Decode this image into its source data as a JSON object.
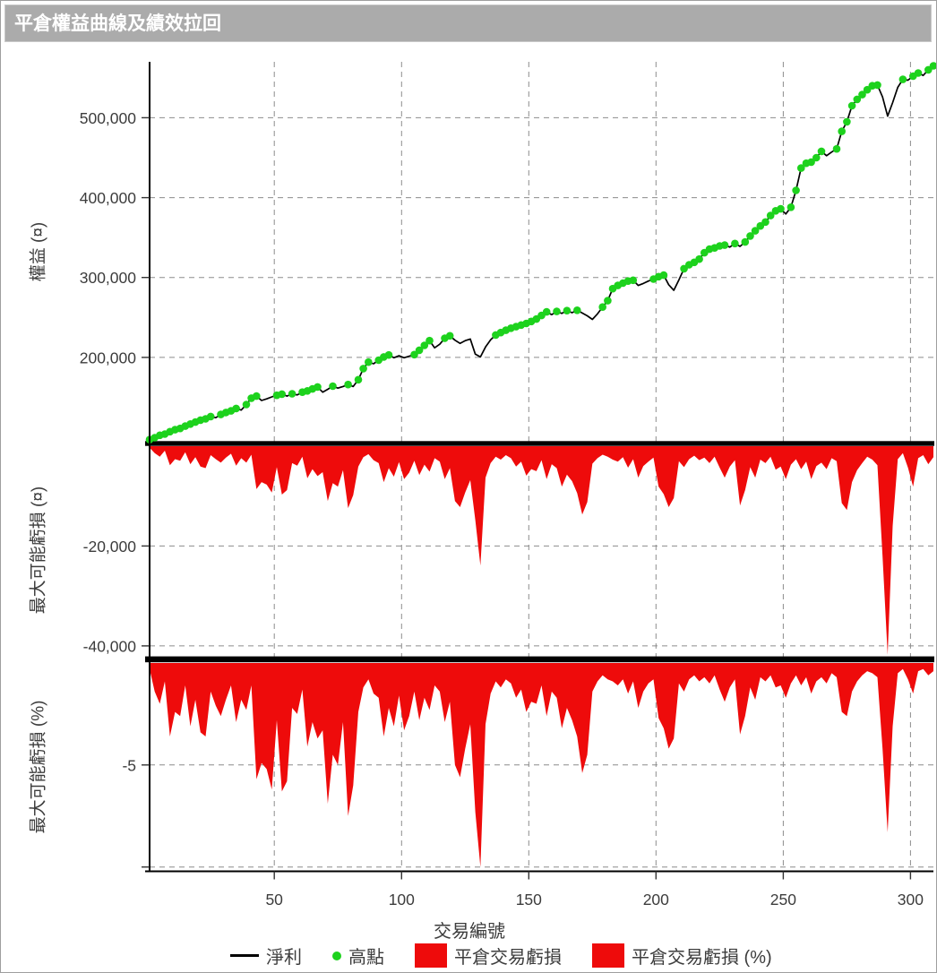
{
  "window": {
    "title": "平倉權益曲線及績效拉回"
  },
  "colors": {
    "titlebar_bg": "#ababab",
    "titlebar_text": "#ffffff",
    "net_profit_line": "#000000",
    "high_point_green": "#1dd21d",
    "loss_red": "#ee0b0b",
    "grid_gray": "#8c8c8c",
    "tick_text": "#3c3c3c"
  },
  "chart_data": {
    "type": "line",
    "layout": "3 stacked panels, shared x axis, grid on, legend bottom",
    "x_label": "交易編號",
    "x_start": 1,
    "x_step": 2,
    "x_count": 155,
    "x_range": [
      1,
      309
    ],
    "x_ticks": [
      50,
      100,
      150,
      200,
      250,
      300
    ],
    "legend": {
      "items": [
        {
          "label": "淨利",
          "swatch": "line",
          "color": "#000000"
        },
        {
          "label": "高點",
          "swatch": "dot",
          "color": "#1dd21d"
        },
        {
          "label": "平倉交易虧損",
          "swatch": "box",
          "color": "#ee0b0b"
        },
        {
          "label": "平倉交易虧損 (%)",
          "swatch": "box",
          "color": "#ee0b0b"
        }
      ]
    },
    "panels": [
      {
        "y_title": "權益 (¤)",
        "panel_type": "line",
        "ylim": [
          95000,
          570000
        ],
        "y_ticks": [
          {
            "v": 500000,
            "label": "500,000"
          },
          {
            "v": 400000,
            "label": "400,000"
          },
          {
            "v": 300000,
            "label": "300,000"
          },
          {
            "v": 200000,
            "label": "200,000"
          }
        ],
        "series": [
          {
            "name": "淨利",
            "style": "line",
            "color": "#000000",
            "values": [
              97000,
              99500,
              102500,
              104000,
              107000,
              109500,
              111000,
              114000,
              116500,
              119000,
              121500,
              123000,
              126000,
              124500,
              128500,
              131000,
              133000,
              136000,
              134000,
              141000,
              149000,
              151500,
              146000,
              148000,
              150500,
              152500,
              154000,
              151500,
              154500,
              153000,
              156500,
              158000,
              160500,
              163000,
              156500,
              160000,
              164000,
              161500,
              163500,
              166000,
              163500,
              172000,
              186000,
              194000,
              192000,
              196500,
              200500,
              203000,
              199500,
              202000,
              199500,
              201500,
              203500,
              209000,
              215000,
              221000,
              212000,
              216500,
              224000,
              227000,
              221500,
              217500,
              221000,
              223000,
              204000,
              200500,
              213000,
              222000,
              228000,
              231000,
              234000,
              236500,
              238500,
              240500,
              242500,
              245000,
              248000,
              252500,
              257000,
              253500,
              257500,
              255000,
              258500,
              256000,
              259000,
              255500,
              252000,
              247500,
              254500,
              263000,
              271000,
              286000,
              290000,
              293000,
              295500,
              296500,
              290000,
              292500,
              295500,
              298000,
              301000,
              303000,
              291000,
              284000,
              297000,
              311000,
              316000,
              319000,
              323000,
              331000,
              335500,
              337000,
              339500,
              340500,
              338000,
              342500,
              339000,
              344500,
              352000,
              358500,
              364500,
              369500,
              377500,
              383500,
              386000,
              379500,
              388000,
              409000,
              437000,
              443000,
              444500,
              450000,
              458000,
              452500,
              457000,
              461000,
              483000,
              495000,
              515000,
              523000,
              529000,
              535000,
              540000,
              541000,
              526000,
              502000,
              519000,
              538000,
              548000,
              547000,
              552000,
              556000,
              553000,
              560000,
              565000
            ]
          },
          {
            "name": "高點",
            "style": "dot",
            "color": "#1dd21d",
            "derived_from": "淨利",
            "rule": "marker at every new running high of 淨利"
          }
        ]
      },
      {
        "y_title": "最大可能虧損 (¤)",
        "panel_type": "area",
        "ylim": [
          -42000,
          0
        ],
        "y_ticks": [
          {
            "v": -20000,
            "label": "-20,000"
          },
          {
            "v": -40000,
            "label": "-40,000"
          }
        ],
        "series": [
          {
            "name": "平倉交易虧損",
            "style": "area",
            "color": "#ee0b0b",
            "values": [
              -300,
              -1400,
              -2100,
              -900,
              -3800,
              -2600,
              -2900,
              -1200,
              -3600,
              -2200,
              -4100,
              -4400,
              -1800,
              -2600,
              -3300,
              -2300,
              -1500,
              -3900,
              -2400,
              -3300,
              -1700,
              -8600,
              -7200,
              -7700,
              -9300,
              -4200,
              -9700,
              -8800,
              -3400,
              -3900,
              -2100,
              -6400,
              -4600,
              -6000,
              -5200,
              -11000,
              -7400,
              -8100,
              -4800,
              -12400,
              -9800,
              -4100,
              -2200,
              -1600,
              -2800,
              -3400,
              -7200,
              -4400,
              -6100,
              -3200,
              -6600,
              -5300,
              -2900,
              -5800,
              -3700,
              -5100,
              -2400,
              -3100,
              -6600,
              -4400,
              -11000,
              -12200,
              -9300,
              -6800,
              -14800,
              -23900,
              -6300,
              -3400,
              -2100,
              -2700,
              -1800,
              -2400,
              -4100,
              -3100,
              -5900,
              -4600,
              -5000,
              -2800,
              -6600,
              -3600,
              -4400,
              -8100,
              -5700,
              -7000,
              -9400,
              -13700,
              -11200,
              -3500,
              -2400,
              -1700,
              -2100,
              -2700,
              -3100,
              -2200,
              -4300,
              -2600,
              -6300,
              -4000,
              -3100,
              -2300,
              -8100,
              -9600,
              -12200,
              -10400,
              -3000,
              -4200,
              -2600,
              -1900,
              -2800,
              -2300,
              -3400,
              -2100,
              -4300,
              -6300,
              -4100,
              -2800,
              -11900,
              -8800,
              -4200,
              -6300,
              -2700,
              -3400,
              -2100,
              -4700,
              -4100,
              -6600,
              -3700,
              -2600,
              -4600,
              -3100,
              -6600,
              -4000,
              -3300,
              -4600,
              -2400,
              -3000,
              -11400,
              -12800,
              -7200,
              -4800,
              -3400,
              -2100,
              -2700,
              -3800,
              -22000,
              -41800,
              -16000,
              -2600,
              -1400,
              -4300,
              -8100,
              -2400,
              -1800,
              -3600,
              -2200
            ]
          }
        ]
      },
      {
        "y_title": "最大可能虧損 (%)",
        "panel_type": "area",
        "ylim": [
          -10.05,
          0
        ],
        "y_ticks": [
          {
            "v": -5,
            "label": "-5"
          },
          {
            "v": -10,
            "label": ""
          }
        ],
        "series": [
          {
            "name": "平倉交易虧損 (%)",
            "style": "area",
            "color": "#ee0b0b",
            "values": [
              -0.3,
              -1.4,
              -2.0,
              -0.9,
              -3.6,
              -2.4,
              -2.6,
              -1.1,
              -3.1,
              -1.8,
              -3.4,
              -3.6,
              -1.4,
              -2.1,
              -2.6,
              -1.8,
              -1.1,
              -2.9,
              -1.8,
              -2.3,
              -1.1,
              -5.7,
              -4.9,
              -5.2,
              -6.2,
              -2.8,
              -6.3,
              -5.8,
              -2.2,
              -2.5,
              -1.3,
              -4.1,
              -2.9,
              -3.7,
              -3.3,
              -6.9,
              -4.5,
              -5.0,
              -2.9,
              -7.5,
              -6.0,
              -2.4,
              -1.2,
              -0.8,
              -1.5,
              -1.7,
              -3.6,
              -2.2,
              -3.1,
              -1.6,
              -3.3,
              -2.6,
              -1.4,
              -2.8,
              -1.7,
              -2.3,
              -1.1,
              -1.4,
              -2.9,
              -1.9,
              -5.0,
              -5.6,
              -4.2,
              -3.0,
              -7.3,
              -10.0,
              -3.0,
              -1.5,
              -0.9,
              -1.2,
              -0.8,
              -1.0,
              -1.7,
              -1.3,
              -2.4,
              -1.9,
              -2.0,
              -1.1,
              -2.6,
              -1.4,
              -1.7,
              -3.2,
              -2.2,
              -2.8,
              -3.6,
              -5.4,
              -4.5,
              -1.4,
              -0.9,
              -0.6,
              -0.8,
              -0.9,
              -1.1,
              -0.8,
              -1.5,
              -0.9,
              -2.2,
              -1.4,
              -1.0,
              -0.8,
              -2.7,
              -3.2,
              -4.2,
              -3.7,
              -1.0,
              -1.4,
              -0.8,
              -0.6,
              -0.9,
              -0.7,
              -1.0,
              -0.6,
              -1.3,
              -1.9,
              -1.2,
              -0.8,
              -3.5,
              -2.6,
              -1.2,
              -1.8,
              -0.7,
              -0.9,
              -0.6,
              -1.2,
              -1.1,
              -1.7,
              -1.0,
              -0.6,
              -1.1,
              -0.7,
              -1.5,
              -0.9,
              -0.7,
              -1.0,
              -0.5,
              -0.7,
              -2.4,
              -2.6,
              -1.4,
              -0.9,
              -0.6,
              -0.4,
              -0.5,
              -0.7,
              -4.2,
              -8.3,
              -3.1,
              -0.5,
              -0.3,
              -0.8,
              -1.5,
              -0.4,
              -0.3,
              -0.6,
              -0.4
            ]
          }
        ]
      }
    ]
  }
}
